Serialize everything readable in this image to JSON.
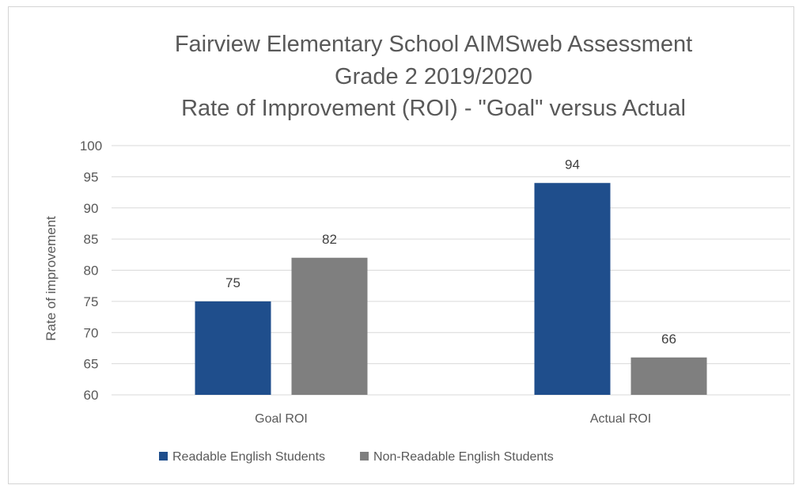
{
  "chart_data": {
    "type": "bar",
    "title": [
      "Fairview Elementary School AIMSweb Assessment",
      "Grade 2 2019/2020",
      "Rate of Improvement (ROI) - \"Goal\" versus Actual"
    ],
    "ylabel": "Rate of improvement",
    "xlabel": "",
    "ylim": [
      60,
      100
    ],
    "yticks": [
      60,
      65,
      70,
      75,
      80,
      85,
      90,
      95,
      100
    ],
    "categories": [
      "Goal ROI",
      "Actual ROI"
    ],
    "series": [
      {
        "name": "Readable English Students",
        "values": [
          75,
          94
        ],
        "color": "#1f4e8c"
      },
      {
        "name": "Non-Readable English Students",
        "values": [
          82,
          66
        ],
        "color": "#7f7f7f"
      }
    ],
    "data_labels": true,
    "grid": true,
    "legend_position": "bottom"
  }
}
